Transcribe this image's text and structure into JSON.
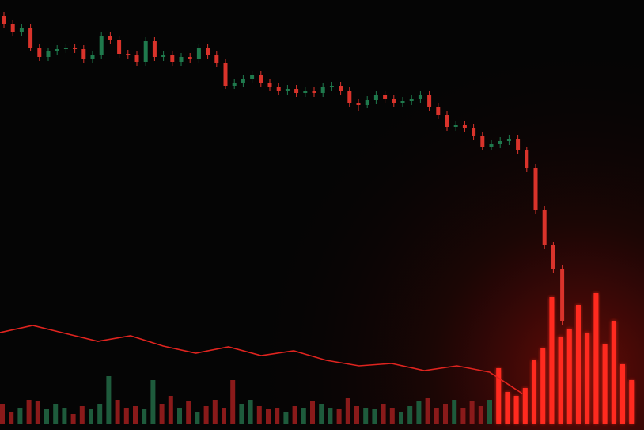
{
  "chart_data": {
    "type": "candlestick",
    "ylim": [
      0,
      535
    ],
    "up_color": "#1f7a4d",
    "down_color": "#d9332b",
    "candles": {
      "open": [
        515,
        505,
        495,
        500,
        475,
        463,
        470,
        473,
        475,
        473,
        460,
        465,
        490,
        485,
        467,
        465,
        457,
        483,
        463,
        465,
        457,
        463,
        460,
        475,
        465,
        455,
        427,
        430,
        435,
        440,
        430,
        425,
        420,
        423,
        417,
        420,
        417,
        425,
        427,
        420,
        405,
        403,
        409,
        415,
        410,
        405,
        407,
        410,
        415,
        400,
        390,
        375,
        377,
        373,
        363,
        350,
        353,
        357,
        360,
        345,
        323,
        270,
        225,
        195
      ],
      "high": [
        520,
        510,
        505,
        505,
        480,
        475,
        478,
        480,
        480,
        478,
        470,
        495,
        495,
        490,
        472,
        470,
        488,
        488,
        470,
        470,
        468,
        468,
        480,
        480,
        470,
        460,
        435,
        440,
        445,
        445,
        435,
        430,
        428,
        428,
        425,
        425,
        430,
        432,
        432,
        425,
        410,
        414,
        420,
        420,
        415,
        412,
        415,
        420,
        420,
        405,
        395,
        382,
        382,
        378,
        368,
        358,
        362,
        365,
        365,
        350,
        328,
        275,
        230,
        200
      ],
      "low": [
        500,
        490,
        490,
        470,
        458,
        458,
        465,
        468,
        468,
        455,
        455,
        460,
        480,
        462,
        460,
        452,
        452,
        458,
        458,
        452,
        452,
        455,
        455,
        460,
        450,
        422,
        422,
        425,
        430,
        425,
        420,
        415,
        415,
        412,
        412,
        412,
        412,
        420,
        415,
        400,
        395,
        398,
        404,
        405,
        400,
        400,
        402,
        405,
        395,
        385,
        370,
        370,
        368,
        358,
        345,
        345,
        348,
        352,
        340,
        318,
        265,
        220,
        190,
        125
      ],
      "close": [
        505,
        495,
        500,
        475,
        463,
        470,
        473,
        475,
        473,
        460,
        465,
        490,
        485,
        467,
        465,
        457,
        483,
        463,
        465,
        457,
        463,
        460,
        475,
        465,
        455,
        427,
        430,
        435,
        440,
        430,
        425,
        420,
        423,
        417,
        420,
        417,
        425,
        427,
        420,
        405,
        403,
        409,
        415,
        410,
        405,
        407,
        410,
        415,
        400,
        390,
        375,
        377,
        373,
        363,
        350,
        353,
        357,
        360,
        345,
        323,
        270,
        225,
        195,
        130
      ]
    },
    "volume": {
      "values": [
        25,
        15,
        20,
        30,
        28,
        18,
        25,
        20,
        12,
        22,
        18,
        25,
        60,
        30,
        20,
        22,
        18,
        55,
        25,
        35,
        20,
        28,
        15,
        22,
        30,
        20,
        55,
        25,
        30,
        22,
        18,
        20,
        15,
        22,
        20,
        28,
        25,
        20,
        18,
        32,
        22,
        20,
        18,
        25,
        20,
        15,
        22,
        28,
        32,
        20,
        25,
        30,
        20,
        28,
        22,
        30,
        70,
        40,
        35,
        45,
        80,
        95,
        160,
        110,
        120,
        150,
        115,
        165,
        100,
        130,
        75,
        55
      ],
      "colors": [
        "#8a1a1a",
        "#8a1a1a",
        "#1e5b3c",
        "#8a1a1a",
        "#8a1a1a",
        "#1e5b3c",
        "#1e5b3c",
        "#1e5b3c",
        "#8a1a1a",
        "#8a1a1a",
        "#1e5b3c",
        "#1e5b3c",
        "#1e5b3c",
        "#8a1a1a",
        "#8a1a1a",
        "#8a1a1a",
        "#1e5b3c",
        "#1e5b3c",
        "#8a1a1a",
        "#8a1a1a",
        "#1e5b3c",
        "#8a1a1a",
        "#1e5b3c",
        "#8a1a1a",
        "#8a1a1a",
        "#8a1a1a",
        "#8a1a1a",
        "#1e5b3c",
        "#1e5b3c",
        "#8a1a1a",
        "#8a1a1a",
        "#8a1a1a",
        "#1e5b3c",
        "#8a1a1a",
        "#1e5b3c",
        "#8a1a1a",
        "#1e5b3c",
        "#1e5b3c",
        "#8a1a1a",
        "#8a1a1a",
        "#8a1a1a",
        "#1e5b3c",
        "#1e5b3c",
        "#8a1a1a",
        "#8a1a1a",
        "#1e5b3c",
        "#1e5b3c",
        "#1e5b3c",
        "#8a1a1a",
        "#8a1a1a",
        "#8a1a1a",
        "#1e5b3c",
        "#8a1a1a",
        "#8a1a1a",
        "#8a1a1a",
        "#1e5b3c",
        "#ff2a1f",
        "#ff2a1f",
        "#ff2a1f",
        "#ff2a1f",
        "#ff2a1f",
        "#ff2a1f",
        "#ff2a1f",
        "#ff2a1f",
        "#ff2a1f",
        "#ff2a1f",
        "#ff2a1f",
        "#ff2a1f",
        "#ff2a1f",
        "#ff2a1f",
        "#ff2a1f",
        "#ff2a1f"
      ]
    },
    "line": {
      "color": "#e0241f",
      "values": [
        115,
        124,
        114,
        104,
        111,
        98,
        89,
        97,
        86,
        92,
        80,
        73,
        76,
        67,
        73,
        65,
        38
      ]
    }
  }
}
